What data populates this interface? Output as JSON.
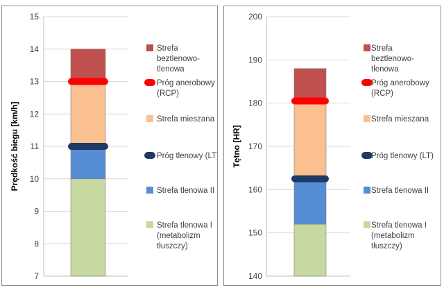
{
  "chart_data": [
    {
      "type": "bar",
      "subtype": "stacked-zones",
      "ylabel": "Prędkość biegu [km/h]",
      "ylim": [
        7,
        15
      ],
      "yticks": [
        7,
        8,
        9,
        10,
        11,
        12,
        13,
        14,
        15
      ],
      "grid": true,
      "legend_position": "right",
      "zones": [
        {
          "name": "Strefa tlenowa I (metabolizm tłuszczy)",
          "from": 7,
          "to": 10,
          "color": "#c5d9a0"
        },
        {
          "name": "Strefa tlenowa II",
          "from": 10,
          "to": 11,
          "color": "#558ed5"
        },
        {
          "name": "Strefa mieszana",
          "from": 11,
          "to": 13,
          "color": "#fac090"
        },
        {
          "name": "Strefa beztlenowo-tlenowa",
          "from": 13,
          "to": 14,
          "color": "#c0504d"
        }
      ],
      "thresholds": [
        {
          "name": "Próg tlenowy (LT)",
          "value": 11,
          "color": "#1f3864"
        },
        {
          "name": "Próg anerobowy (RCP)",
          "value": 13,
          "color": "#ff0000"
        }
      ],
      "legend": [
        {
          "lines": [
            "Strefa",
            "beztlenowo-",
            "tlenowa"
          ],
          "color": "#c0504d",
          "kind": "box"
        },
        {
          "lines": [
            "Próg anerobowy",
            "(RCP)"
          ],
          "color": "#ff0000",
          "kind": "pill"
        },
        {
          "lines": [
            "Strefa mieszana"
          ],
          "color": "#fac090",
          "kind": "box"
        },
        {
          "lines": [
            "Próg tlenowy (LT)"
          ],
          "color": "#1f3864",
          "kind": "pill"
        },
        {
          "lines": [
            "Strefa tlenowa II"
          ],
          "color": "#558ed5",
          "kind": "box"
        },
        {
          "lines": [
            "Strefa tlenowa I",
            "(metabolizm",
            "tłuszczy)"
          ],
          "color": "#c5d9a0",
          "kind": "box"
        }
      ]
    },
    {
      "type": "bar",
      "subtype": "stacked-zones",
      "ylabel": "Tętno [HR]",
      "ylim": [
        140,
        200
      ],
      "yticks": [
        140,
        150,
        160,
        170,
        180,
        190,
        200
      ],
      "grid": true,
      "legend_position": "right",
      "zones": [
        {
          "name": "Strefa tlenowa I (metabolizm tłuszczy)",
          "from": 140,
          "to": 152,
          "color": "#c5d9a0"
        },
        {
          "name": "Strefa tlenowa II",
          "from": 152,
          "to": 162.5,
          "color": "#558ed5"
        },
        {
          "name": "Strefa mieszana",
          "from": 162.5,
          "to": 180.5,
          "color": "#fac090"
        },
        {
          "name": "Strefa beztlenowo-tlenowa",
          "from": 180.5,
          "to": 188,
          "color": "#c0504d"
        }
      ],
      "thresholds": [
        {
          "name": "Próg tlenowy (LT)",
          "value": 162.5,
          "color": "#1f3864"
        },
        {
          "name": "Próg anerobowy (RCP)",
          "value": 180.5,
          "color": "#ff0000"
        }
      ],
      "legend": [
        {
          "lines": [
            "Strefa",
            "beztlenowo-",
            "tlenowa"
          ],
          "color": "#c0504d",
          "kind": "box"
        },
        {
          "lines": [
            "Próg anerobowy",
            "(RCP)"
          ],
          "color": "#ff0000",
          "kind": "pill"
        },
        {
          "lines": [
            "Strefa mieszana"
          ],
          "color": "#fac090",
          "kind": "box"
        },
        {
          "lines": [
            "Próg tlenowy (LT)"
          ],
          "color": "#1f3864",
          "kind": "pill"
        },
        {
          "lines": [
            "Strefa tlenowa II"
          ],
          "color": "#558ed5",
          "kind": "box"
        },
        {
          "lines": [
            "Strefa tlenowa I",
            "(metabolizm",
            "tłuszczy)"
          ],
          "color": "#c5d9a0",
          "kind": "box"
        }
      ]
    }
  ]
}
